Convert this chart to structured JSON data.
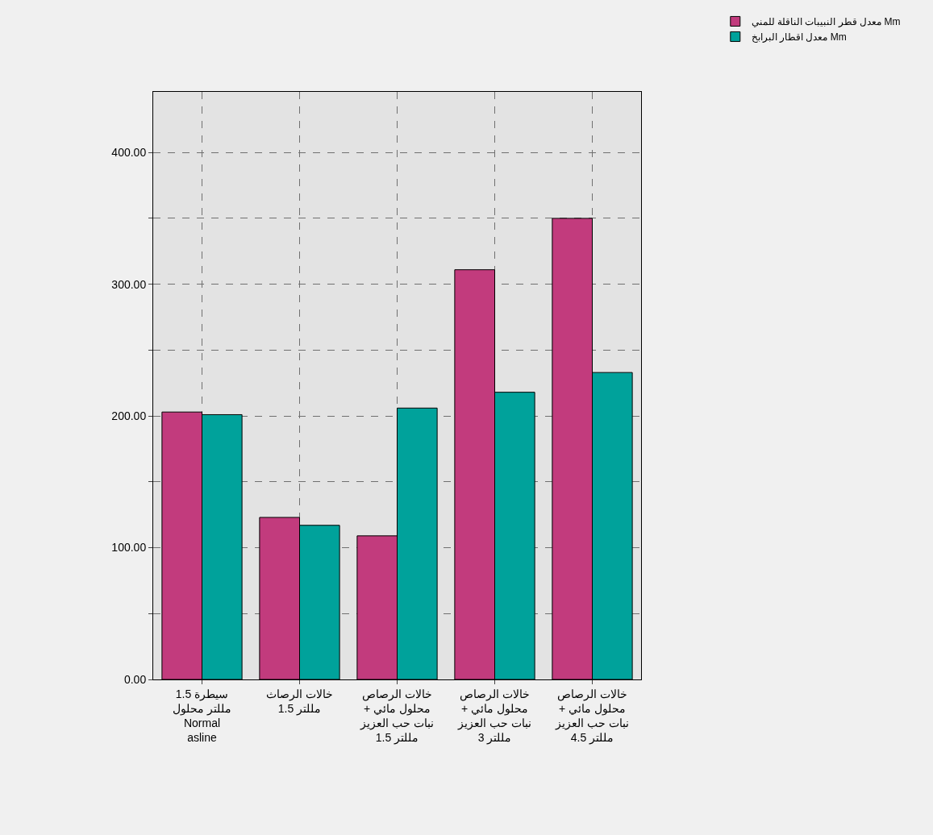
{
  "chart_data": {
    "type": "bar",
    "categories": [
      "سيطرة 1.5\nمللتر محلول\nNormal\nasline",
      "خالات الرصاث\n1.5 مللتر",
      "خالات الرصاص\n+ محلول مائي\nنبات حب العزيز\n1.5 مللتر",
      "خالات الرصاص\n+ محلول مائي\nنبات حب العزيز\n3 مللتر",
      "خالات الرصاص\n+ محلول مائي\nنبات حب العزيز\n4.5 مللتر"
    ],
    "series": [
      {
        "name": "معدل قطر النبيبات الناقلة للمني Mm",
        "color": "#c23b7d",
        "values": [
          203,
          123,
          109,
          311,
          350
        ]
      },
      {
        "name": "معدل اقطار البرابخ Mm",
        "color": "#00a29b",
        "values": [
          201,
          117,
          206,
          218,
          233
        ]
      }
    ],
    "ylim": [
      0,
      446
    ],
    "yticks": [
      {
        "value": 0,
        "label": "0.00"
      },
      {
        "value": 50,
        "label": null
      },
      {
        "value": 100,
        "label": "100.00"
      },
      {
        "value": 150,
        "label": null
      },
      {
        "value": 200,
        "label": "200.00"
      },
      {
        "value": 250,
        "label": null
      },
      {
        "value": 300,
        "label": "300.00"
      },
      {
        "value": 350,
        "label": null
      },
      {
        "value": 400,
        "label": "400.00"
      }
    ],
    "grid": true,
    "legend": "top right"
  }
}
